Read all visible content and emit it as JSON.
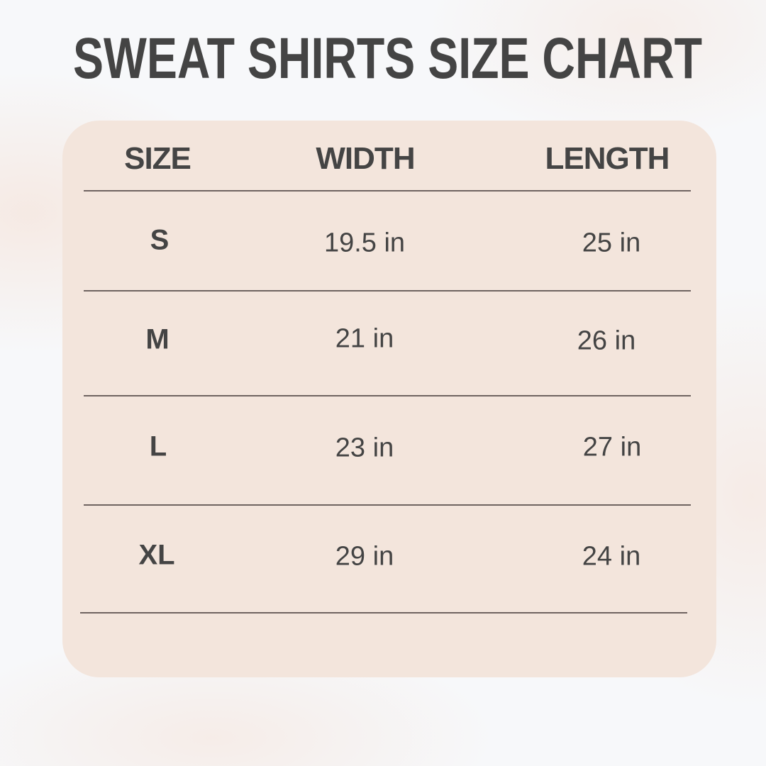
{
  "title": "SWEAT SHIRTS SIZE CHART",
  "colors": {
    "text": "#444444",
    "card": "#f3e5dc",
    "background": "#f7f8fa",
    "divider": "#6e6360"
  },
  "table": {
    "headers": [
      "SIZE",
      "WIDTH",
      "LENGTH"
    ],
    "rows": [
      {
        "size": "S",
        "width": "19.5 in",
        "length": "25 in"
      },
      {
        "size": "M",
        "width": "21 in",
        "length": "26 in"
      },
      {
        "size": "L",
        "width": "23 in",
        "length": "27 in"
      },
      {
        "size": "XL",
        "width": "29 in",
        "length": "24 in"
      }
    ]
  }
}
